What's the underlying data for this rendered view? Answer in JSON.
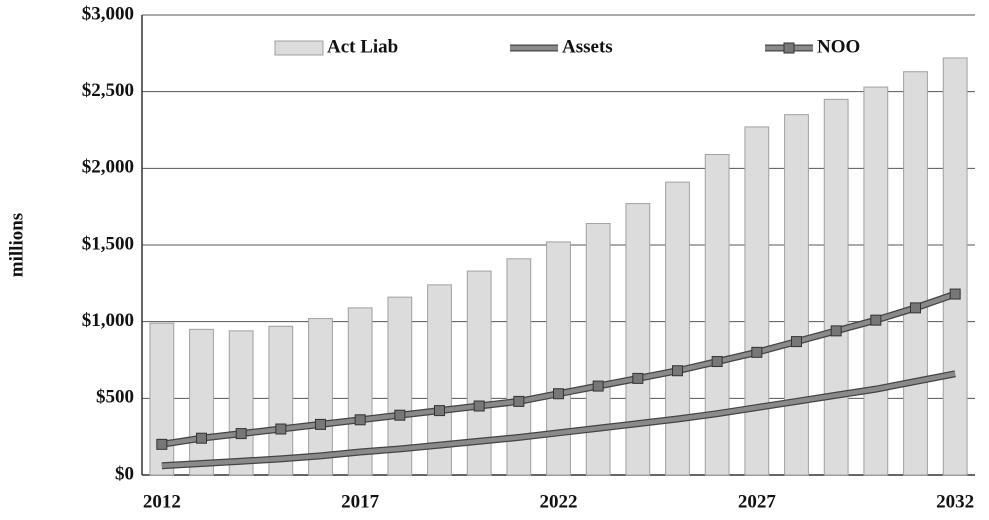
{
  "chart_data": {
    "type": "bar_line",
    "ylabel": "millions",
    "categories": [
      "2012",
      null,
      null,
      null,
      null,
      "2017",
      null,
      null,
      null,
      null,
      "2022",
      null,
      null,
      null,
      null,
      "2027",
      null,
      null,
      null,
      null,
      "2032"
    ],
    "series": [
      {
        "name": "Act Liab",
        "type": "bar",
        "color": "#dcdcdc",
        "values": [
          990,
          950,
          940,
          970,
          1020,
          1090,
          1160,
          1240,
          1330,
          1410,
          1520,
          1640,
          1770,
          1910,
          2090,
          2270,
          2350,
          2450,
          2530,
          2630,
          2720
        ]
      },
      {
        "name": "Assets",
        "type": "line",
        "color": "#8a8a8a",
        "values": [
          60,
          75,
          90,
          105,
          125,
          150,
          170,
          195,
          220,
          245,
          275,
          305,
          335,
          365,
          400,
          440,
          480,
          520,
          560,
          610,
          660
        ]
      },
      {
        "name": "NOO",
        "type": "line",
        "marker": "square",
        "color": "#8a8a8a",
        "values": [
          200,
          240,
          270,
          300,
          330,
          360,
          390,
          420,
          450,
          480,
          530,
          580,
          630,
          680,
          740,
          800,
          870,
          940,
          1010,
          1090,
          1180
        ]
      }
    ],
    "ylim": [
      0,
      3000
    ],
    "yticks": [
      {
        "value": 0,
        "label": "$0"
      },
      {
        "value": 500,
        "label": "$500"
      },
      {
        "value": 1000,
        "label": "$1,000"
      },
      {
        "value": 1500,
        "label": "$1,500"
      },
      {
        "value": 2000,
        "label": "$2,000"
      },
      {
        "value": 2500,
        "label": "$2,500"
      },
      {
        "value": 3000,
        "label": "$3,000"
      }
    ],
    "grid": true,
    "legend": "top"
  }
}
